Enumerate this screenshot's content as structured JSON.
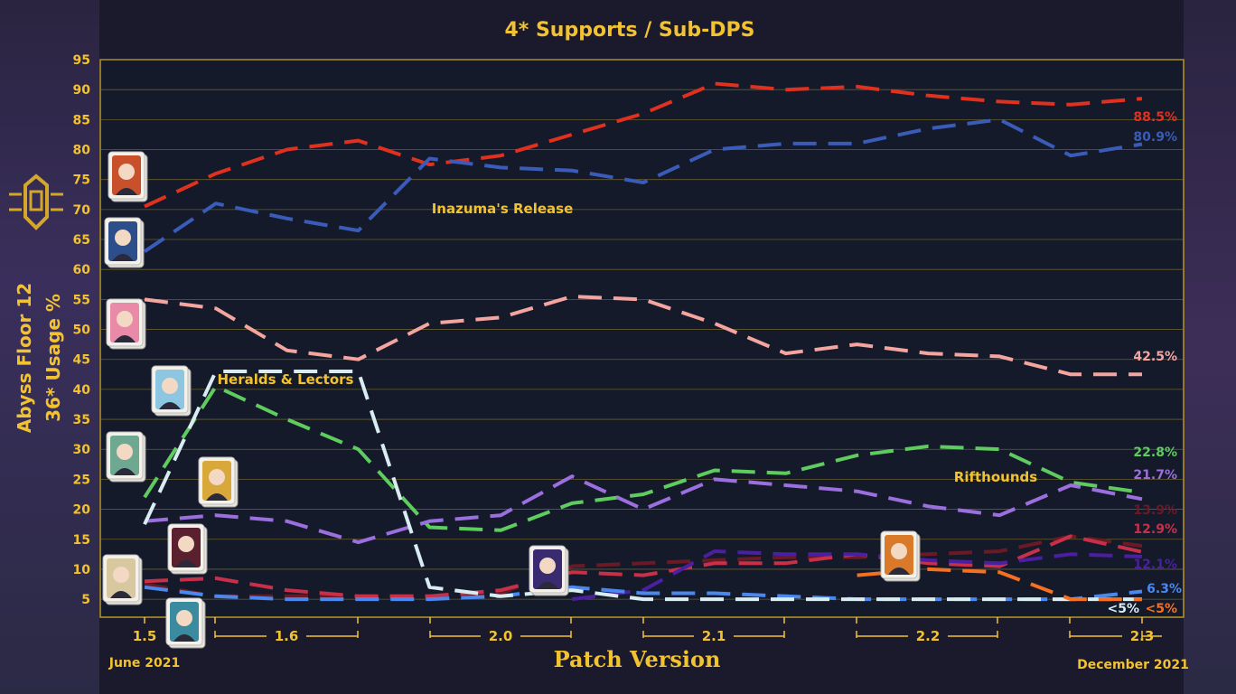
{
  "chart_data": {
    "type": "line",
    "title": "4* Supports / Sub-DPS",
    "ylabel_line1": "Abyss Floor 12",
    "ylabel_line2": "36* Usage %",
    "xlabel": "Patch Version",
    "ylim": [
      2,
      95
    ],
    "yticks": [
      5,
      10,
      15,
      20,
      25,
      30,
      35,
      40,
      45,
      50,
      55,
      60,
      65,
      70,
      75,
      80,
      85,
      90,
      95
    ],
    "grid": true,
    "patch_labels": [
      "1.5",
      "1.6",
      "2.0",
      "2.1",
      "2.2",
      "2.3"
    ],
    "start_label": "June 2021",
    "end_label": "December 2021",
    "annotations": [
      "Inazuma's Release",
      "Heralds & Lectors",
      "Rifthounds"
    ],
    "series": [
      {
        "color": "#e0301e",
        "end_label": "88.5%",
        "values": [
          70.5,
          76,
          80,
          81.5,
          77.5,
          79,
          82.5,
          86,
          91,
          90,
          90.5,
          89,
          88,
          87.5,
          88.5
        ]
      },
      {
        "color": "#3a5cb8",
        "end_label": "80.9%",
        "values": [
          63,
          71,
          68.5,
          66.5,
          78.5,
          77,
          76.5,
          74.5,
          80,
          81,
          81,
          83.5,
          85,
          79,
          80.9
        ]
      },
      {
        "color": "#f5a5a0",
        "end_label": "42.5%",
        "values": [
          55,
          53.5,
          46.5,
          45,
          51,
          52,
          55.5,
          55,
          51,
          46,
          47.5,
          46,
          45.5,
          42.5,
          42.5
        ]
      },
      {
        "color": "#5ecc5e",
        "end_label": "22.8%",
        "values": [
          22,
          40.5,
          35,
          30,
          17,
          16.5,
          21,
          22.5,
          26.5,
          26,
          29,
          30.5,
          30,
          24.5,
          22.8
        ]
      },
      {
        "color": "#9b6fdd",
        "end_label": "21.7%",
        "values": [
          18,
          19,
          18,
          14.5,
          18,
          19,
          25.5,
          20,
          25,
          24,
          23,
          20.5,
          19,
          24,
          21.7
        ]
      },
      {
        "color": "#6a1a24",
        "end_label": "13.9%",
        "values": [
          7.5,
          5.5,
          5.5,
          5.5,
          5.5,
          6,
          10.5,
          11,
          11.5,
          12,
          12,
          12.5,
          13,
          15.5,
          13.9
        ]
      },
      {
        "color": "#c8304a",
        "end_label": "12.9%",
        "values": [
          8,
          8.5,
          6.5,
          5.5,
          5.5,
          6.5,
          9.5,
          9,
          11,
          11,
          12.5,
          11,
          10.5,
          15.5,
          12.9
        ]
      },
      {
        "color": "#4a1fa0",
        "end_label": "12.1%",
        "values": [
          null,
          null,
          null,
          null,
          null,
          null,
          5,
          6.5,
          13,
          12.5,
          12.5,
          11.5,
          11,
          12.5,
          12.1
        ]
      },
      {
        "color": "#4a88ee",
        "end_label": "6.3%",
        "values": [
          7,
          5.5,
          5,
          5,
          5,
          5.5,
          7,
          6,
          6,
          5.5,
          5,
          5,
          5,
          5,
          6.3
        ]
      },
      {
        "color": "#d8ecf2",
        "end_label": "<5%",
        "values": [
          17.5,
          43,
          43,
          43,
          7,
          5.5,
          6.5,
          5,
          5,
          5,
          5,
          5,
          5,
          5,
          5
        ]
      },
      {
        "color": "#f57020",
        "end_label": "<5%",
        "values": [
          null,
          null,
          null,
          null,
          null,
          null,
          null,
          null,
          null,
          null,
          9,
          10,
          9.5,
          5,
          5
        ]
      }
    ]
  }
}
